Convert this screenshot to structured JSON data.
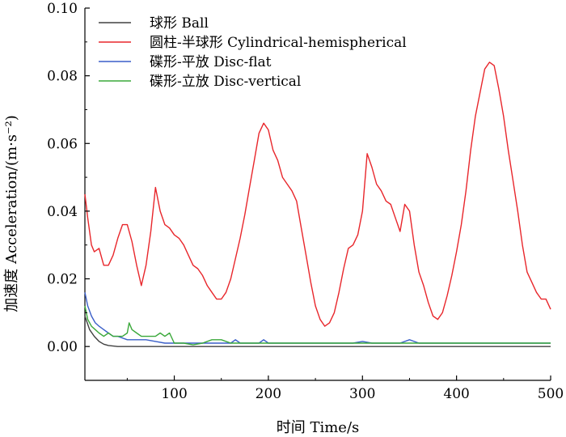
{
  "chart_data": {
    "type": "line",
    "xlabel": "时间 Time/s",
    "ylabel": "加速度 Acceleration/(m·s⁻²)",
    "xlim": [
      5,
      500
    ],
    "ylim": [
      -0.01,
      0.1
    ],
    "xticks": [
      "100",
      "200",
      "300",
      "400",
      "500"
    ],
    "yticks": [
      "0.00",
      "0.02",
      "0.04",
      "0.06",
      "0.08",
      "0.10"
    ],
    "legend_position": "top-left",
    "series": [
      {
        "name": "球形 Ball",
        "color": "#404040",
        "x": [
          5,
          10,
          15,
          20,
          25,
          30,
          40,
          500
        ],
        "y": [
          0.009,
          0.005,
          0.003,
          0.0015,
          0.0007,
          0.0003,
          0.0,
          0.0
        ]
      },
      {
        "name": "圆柱-半球形 Cylindrical-hemispherical",
        "color": "#e8262b",
        "x": [
          5,
          8,
          12,
          15,
          20,
          25,
          30,
          35,
          40,
          45,
          50,
          55,
          60,
          65,
          70,
          75,
          80,
          85,
          90,
          95,
          100,
          105,
          110,
          115,
          120,
          125,
          130,
          135,
          140,
          145,
          150,
          155,
          160,
          165,
          170,
          175,
          180,
          185,
          190,
          195,
          200,
          205,
          210,
          215,
          220,
          225,
          230,
          235,
          240,
          245,
          250,
          255,
          260,
          265,
          270,
          275,
          280,
          285,
          290,
          295,
          300,
          305,
          310,
          315,
          320,
          325,
          330,
          335,
          340,
          345,
          350,
          355,
          360,
          365,
          370,
          375,
          380,
          385,
          390,
          395,
          400,
          405,
          410,
          415,
          420,
          425,
          430,
          435,
          440,
          445,
          450,
          455,
          460,
          465,
          470,
          475,
          480,
          485,
          490,
          495,
          500
        ],
        "y": [
          0.045,
          0.038,
          0.03,
          0.028,
          0.029,
          0.024,
          0.024,
          0.027,
          0.032,
          0.036,
          0.036,
          0.031,
          0.024,
          0.018,
          0.024,
          0.034,
          0.047,
          0.04,
          0.036,
          0.035,
          0.033,
          0.032,
          0.03,
          0.027,
          0.024,
          0.023,
          0.021,
          0.018,
          0.016,
          0.014,
          0.014,
          0.016,
          0.02,
          0.026,
          0.032,
          0.039,
          0.047,
          0.055,
          0.063,
          0.066,
          0.064,
          0.058,
          0.055,
          0.05,
          0.048,
          0.046,
          0.043,
          0.035,
          0.027,
          0.019,
          0.012,
          0.008,
          0.006,
          0.007,
          0.01,
          0.016,
          0.023,
          0.029,
          0.03,
          0.033,
          0.04,
          0.057,
          0.053,
          0.048,
          0.046,
          0.043,
          0.042,
          0.038,
          0.034,
          0.042,
          0.04,
          0.03,
          0.022,
          0.018,
          0.013,
          0.009,
          0.008,
          0.01,
          0.015,
          0.021,
          0.028,
          0.036,
          0.046,
          0.058,
          0.068,
          0.075,
          0.082,
          0.084,
          0.083,
          0.076,
          0.068,
          0.058,
          0.049,
          0.04,
          0.03,
          0.022,
          0.019,
          0.016,
          0.014,
          0.014,
          0.011
        ]
      },
      {
        "name": "碟形-平放 Disc-flat",
        "color": "#3a5fc8",
        "x": [
          5,
          8,
          12,
          16,
          20,
          25,
          30,
          35,
          40,
          50,
          60,
          70,
          80,
          90,
          100,
          110,
          120,
          130,
          140,
          150,
          160,
          165,
          170,
          180,
          190,
          195,
          200,
          210,
          220,
          230,
          240,
          250,
          260,
          270,
          280,
          290,
          300,
          310,
          320,
          330,
          340,
          350,
          360,
          370,
          380,
          390,
          400,
          410,
          420,
          430,
          440,
          450,
          460,
          470,
          480,
          490,
          500
        ],
        "y": [
          0.016,
          0.012,
          0.009,
          0.007,
          0.006,
          0.005,
          0.004,
          0.003,
          0.003,
          0.002,
          0.002,
          0.002,
          0.0015,
          0.001,
          0.001,
          0.001,
          0.001,
          0.001,
          0.001,
          0.001,
          0.001,
          0.002,
          0.001,
          0.001,
          0.001,
          0.002,
          0.001,
          0.001,
          0.001,
          0.001,
          0.001,
          0.001,
          0.001,
          0.001,
          0.001,
          0.001,
          0.0015,
          0.001,
          0.001,
          0.001,
          0.001,
          0.002,
          0.001,
          0.001,
          0.001,
          0.001,
          0.001,
          0.001,
          0.001,
          0.001,
          0.001,
          0.001,
          0.001,
          0.001,
          0.001,
          0.001,
          0.001
        ]
      },
      {
        "name": "碟形-立放 Disc-vertical",
        "color": "#3aa83a",
        "x": [
          5,
          8,
          12,
          16,
          20,
          25,
          30,
          35,
          40,
          45,
          50,
          52,
          55,
          60,
          65,
          70,
          75,
          80,
          85,
          90,
          95,
          100,
          110,
          120,
          130,
          140,
          150,
          160,
          170,
          180,
          190,
          200,
          210,
          220,
          230,
          240,
          250,
          260,
          270,
          280,
          290,
          300,
          310,
          320,
          330,
          340,
          350,
          360,
          370,
          380,
          390,
          400,
          410,
          420,
          430,
          440,
          450,
          460,
          470,
          480,
          490,
          500
        ],
        "y": [
          0.012,
          0.008,
          0.006,
          0.005,
          0.004,
          0.003,
          0.004,
          0.003,
          0.003,
          0.003,
          0.004,
          0.007,
          0.005,
          0.004,
          0.003,
          0.003,
          0.003,
          0.003,
          0.004,
          0.003,
          0.004,
          0.001,
          0.001,
          0.0005,
          0.001,
          0.002,
          0.002,
          0.001,
          0.001,
          0.001,
          0.001,
          0.001,
          0.001,
          0.001,
          0.001,
          0.001,
          0.001,
          0.001,
          0.001,
          0.001,
          0.001,
          0.001,
          0.001,
          0.001,
          0.001,
          0.001,
          0.001,
          0.001,
          0.001,
          0.001,
          0.001,
          0.001,
          0.001,
          0.001,
          0.001,
          0.001,
          0.001,
          0.001,
          0.001,
          0.001,
          0.001,
          0.001
        ]
      }
    ]
  }
}
